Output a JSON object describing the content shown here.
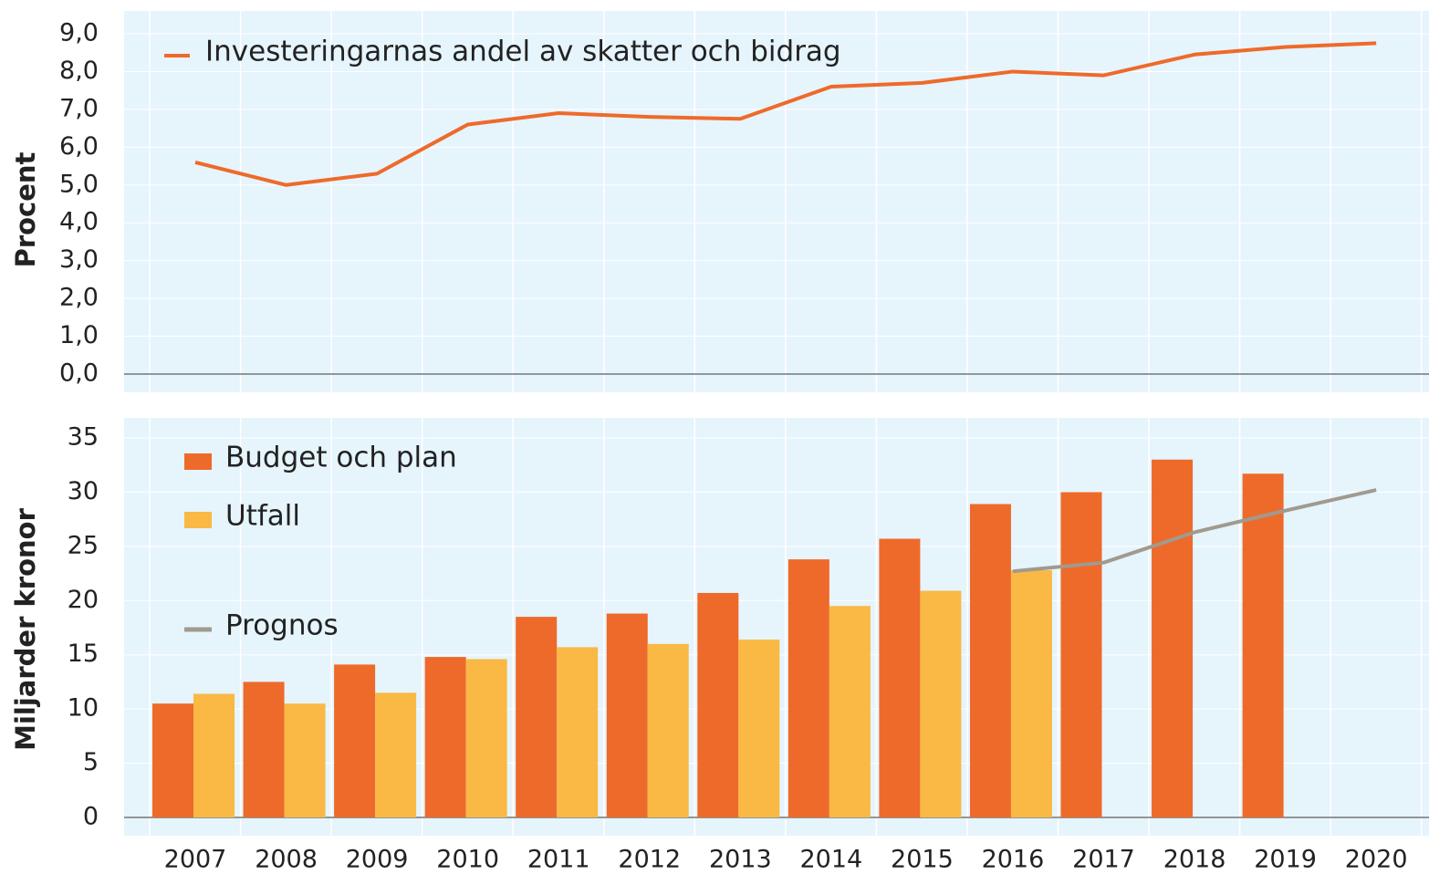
{
  "chart_data": [
    {
      "type": "line",
      "y_label": "Procent",
      "series": [
        {
          "name": "Investeringarnas andel av skatter och bidrag",
          "color": "#ee6a2a",
          "values": [
            5.6,
            5.0,
            5.3,
            6.6,
            6.9,
            6.8,
            6.75,
            7.6,
            7.7,
            8.0,
            7.9,
            8.45,
            8.65,
            8.75
          ]
        }
      ],
      "ylim": [
        0,
        9
      ],
      "yticks": [
        {
          "value": 0,
          "label": "0,0"
        },
        {
          "value": 1,
          "label": "1,0"
        },
        {
          "value": 2,
          "label": "2,0"
        },
        {
          "value": 3,
          "label": "3,0"
        },
        {
          "value": 4,
          "label": "4,0"
        },
        {
          "value": 5,
          "label": "5,0"
        },
        {
          "value": 6,
          "label": "6,0"
        },
        {
          "value": 7,
          "label": "7,0"
        },
        {
          "value": 8,
          "label": "8,0"
        },
        {
          "value": 9,
          "label": "9,0"
        }
      ],
      "grid": true
    },
    {
      "type": "bar",
      "y_label": "Miljarder kronor",
      "categories": [
        "2007",
        "2008",
        "2009",
        "2010",
        "2011",
        "2012",
        "2013",
        "2014",
        "2015",
        "2016",
        "2017",
        "2018",
        "2019",
        "2020"
      ],
      "series": [
        {
          "name": "Budget och plan",
          "color": "#ee6a2a",
          "values": [
            10.5,
            12.5,
            14.1,
            14.8,
            18.5,
            18.8,
            20.7,
            23.8,
            25.7,
            28.9,
            30.0,
            33.0,
            31.7,
            null
          ]
        },
        {
          "name": "Utfall",
          "color": "#f9b944",
          "values": [
            11.4,
            10.5,
            11.5,
            14.6,
            15.7,
            16.0,
            16.4,
            19.5,
            20.9,
            22.8,
            null,
            null,
            null,
            null
          ]
        },
        {
          "name": "Prognos",
          "type": "line",
          "color": "#a09a8f",
          "values": [
            null,
            null,
            null,
            null,
            null,
            null,
            null,
            null,
            null,
            22.7,
            23.5,
            26.3,
            28.3,
            30.2
          ]
        }
      ],
      "ylim": [
        0,
        35
      ],
      "yticks": [
        0,
        5,
        10,
        15,
        20,
        25,
        30,
        35
      ],
      "grid": true
    }
  ]
}
